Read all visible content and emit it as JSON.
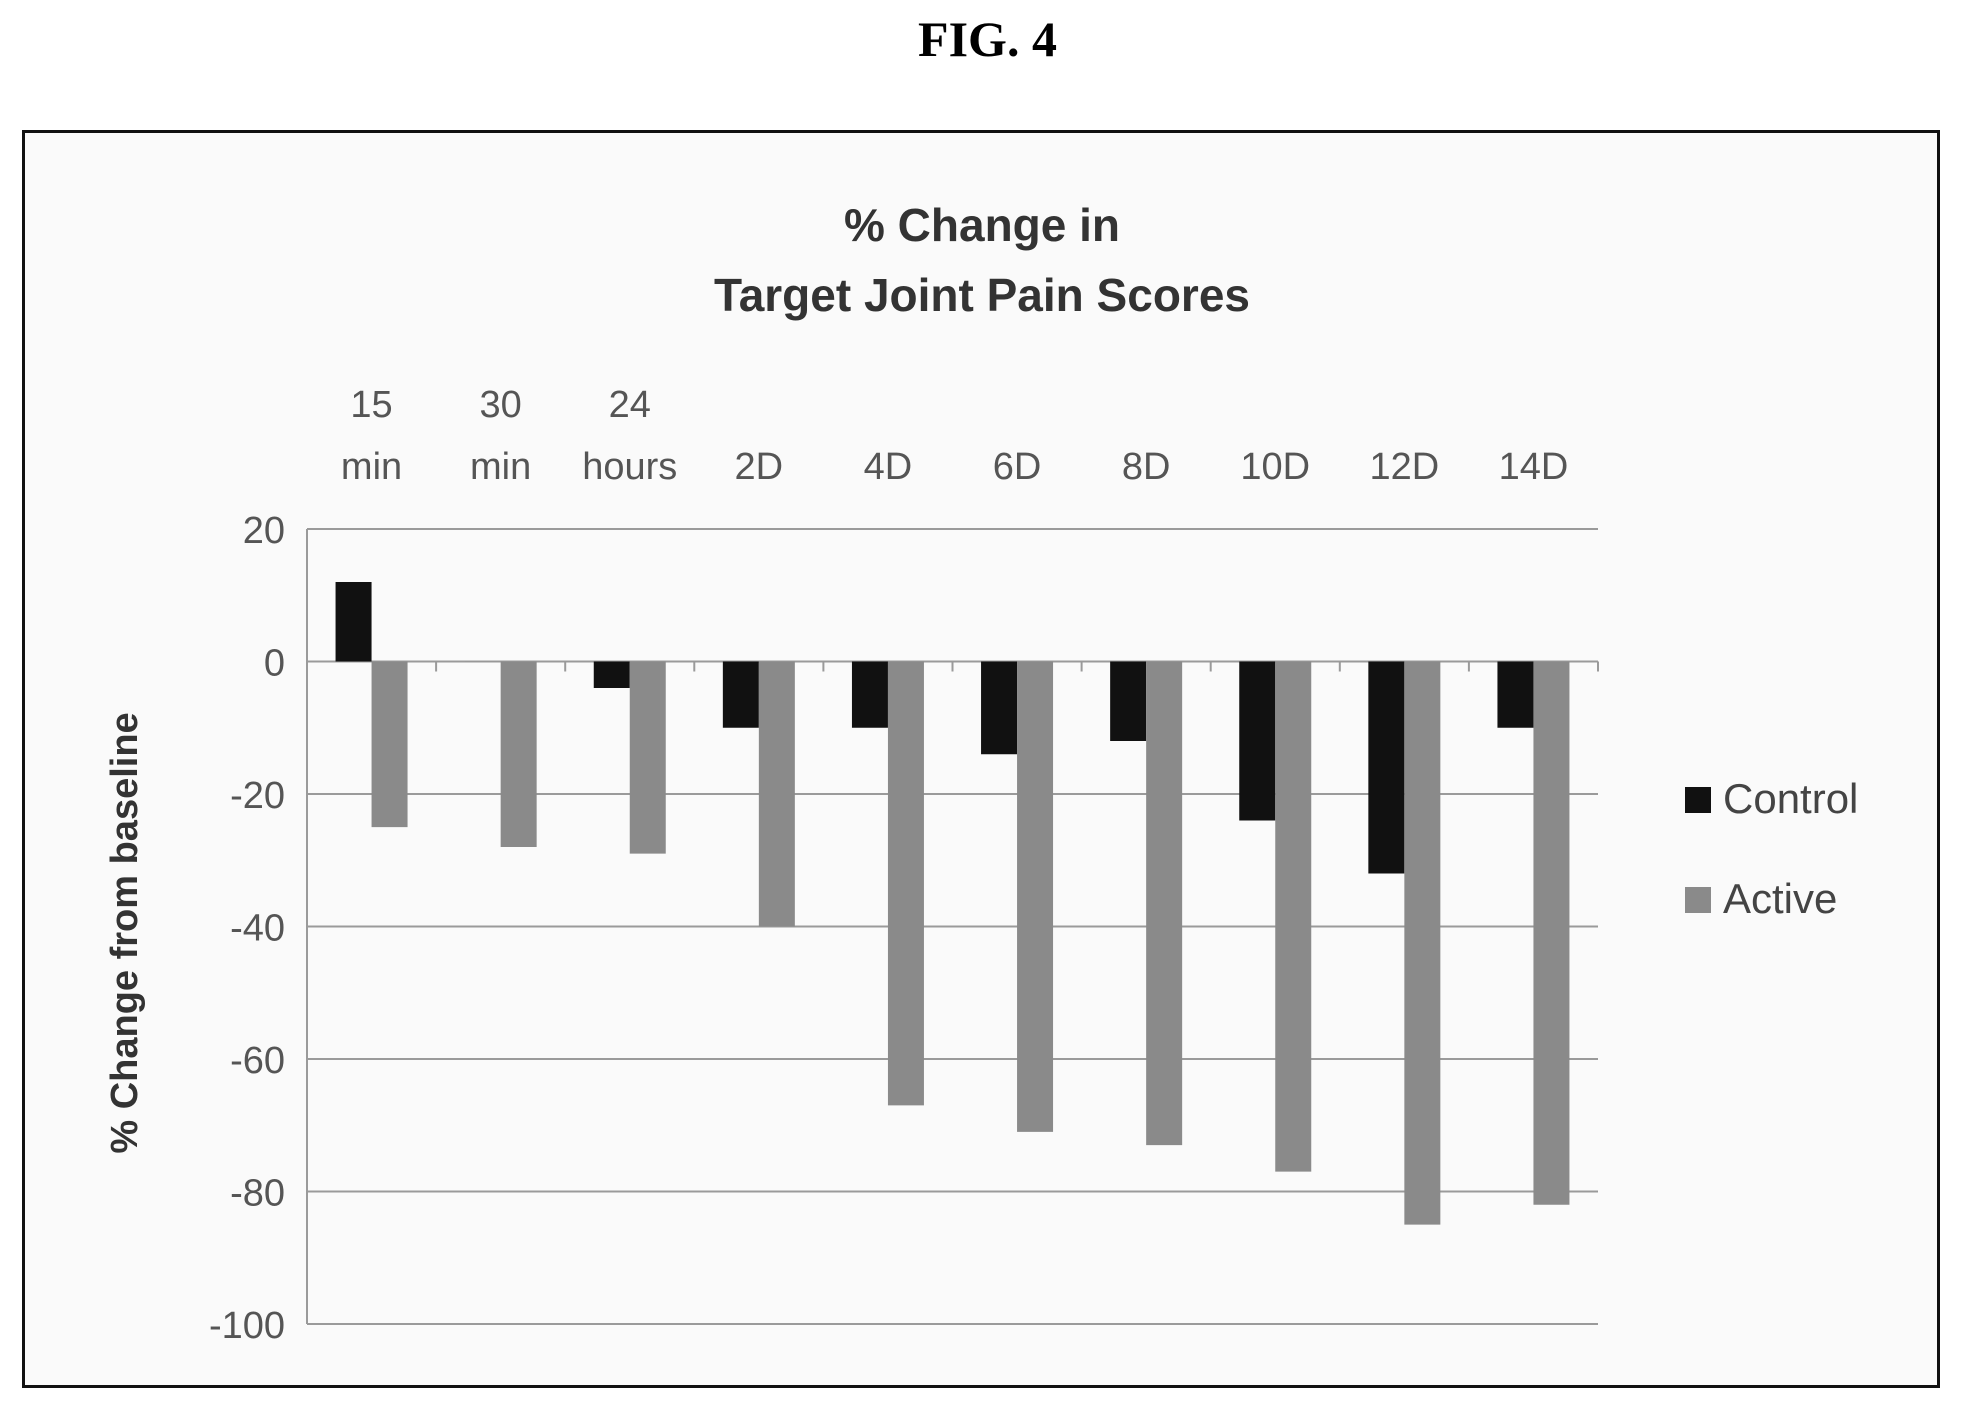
{
  "figure_label": "FIG. 4",
  "chart_data": {
    "type": "bar",
    "title": "% Change in",
    "subtitle": "Target Joint Pain Scores",
    "xlabel": "",
    "ylabel": "% Change from baseline",
    "categories": [
      [
        "15",
        "min"
      ],
      [
        "30",
        "min"
      ],
      [
        "24",
        "hours"
      ],
      [
        "",
        "2D"
      ],
      [
        "",
        "4D"
      ],
      [
        "",
        "6D"
      ],
      [
        "",
        "8D"
      ],
      [
        "",
        "10D"
      ],
      [
        "",
        "12D"
      ],
      [
        "",
        "14D"
      ]
    ],
    "series": [
      {
        "name": "Control",
        "color": "#111111",
        "values": [
          12,
          0,
          -4,
          -10,
          -10,
          -14,
          -12,
          -24,
          -32,
          -10
        ]
      },
      {
        "name": "Active",
        "color": "#8a8a8a",
        "values": [
          -25,
          -28,
          -29,
          -40,
          -67,
          -71,
          -73,
          -77,
          -85,
          -82
        ]
      }
    ],
    "ylim": [
      -100,
      20
    ],
    "yticks": [
      20,
      0,
      -20,
      -40,
      -60,
      -80,
      -100
    ],
    "grid": true,
    "legend_position": "right",
    "x_tick_position": "top"
  }
}
